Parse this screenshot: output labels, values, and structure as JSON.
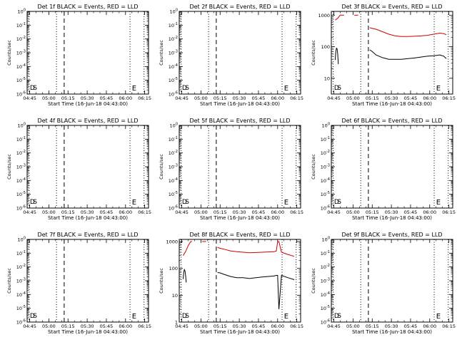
{
  "colors": {
    "events": "#000000",
    "lld": "#cc0000",
    "frame": "#000000",
    "background": "#ffffff"
  },
  "chart_data": [
    {
      "type": "line",
      "title": "Det 1f BLACK = Events, RED = LLD",
      "xlabel": "Start Time (16-Jun-18 04:43:00)",
      "ylabel": "Counts/sec",
      "yscale": "log",
      "ytick_labels": [
        "10^0",
        "10^-1",
        "10^-2",
        "10^-3",
        "10^-4",
        "10^-5",
        "10^-6"
      ],
      "xtick_labels": [
        "04:45",
        "05:00",
        "05:15",
        "05:30",
        "05:45",
        "06:00",
        "06:15"
      ],
      "xlim": [
        0,
        95
      ],
      "ylim": [
        -6,
        0
      ],
      "vlines": [
        {
          "x": 1.5,
          "style": "dotted"
        },
        {
          "x": 23,
          "style": "dotted"
        },
        {
          "x": 29,
          "style": "dashed"
        },
        {
          "x": 80.5,
          "style": "dotted"
        },
        {
          "x": 91.5,
          "style": "dotted"
        }
      ],
      "markers": [
        "D",
        "S",
        "E"
      ],
      "series": []
    },
    {
      "type": "line",
      "title": "Det 2f BLACK = Events, RED = LLD",
      "xlabel": "Start Time (16-Jun-18 04:43:00)",
      "ylabel": "Counts/sec",
      "yscale": "log",
      "ytick_labels": [
        "10^0",
        "10^-1",
        "10^-2",
        "10^-3",
        "10^-4",
        "10^-5",
        "10^-6"
      ],
      "xtick_labels": [
        "04:45",
        "05:00",
        "05:15",
        "05:30",
        "05:45",
        "06:00",
        "06:15"
      ],
      "xlim": [
        0,
        95
      ],
      "ylim": [
        -6,
        0
      ],
      "vlines": [
        {
          "x": 1.5,
          "style": "dotted"
        },
        {
          "x": 23,
          "style": "dotted"
        },
        {
          "x": 29,
          "style": "dashed"
        },
        {
          "x": 80.5,
          "style": "dotted"
        },
        {
          "x": 91.5,
          "style": "dotted"
        }
      ],
      "markers": [
        "D",
        "S",
        "E"
      ],
      "series": []
    },
    {
      "type": "line",
      "title": "Det 3f BLACK = Events, RED = LLD",
      "xlabel": "Start Time (16-Jun-18 04:43:00)",
      "ylabel": "Counts/sec",
      "yscale": "log",
      "ytick_labels": [
        "10",
        "100",
        "1000"
      ],
      "xtick_labels": [
        "04:45",
        "05:00",
        "05:15",
        "05:30",
        "05:45",
        "06:00",
        "06:15"
      ],
      "xlim": [
        0,
        95
      ],
      "ylim": [
        0.5,
        3.12
      ],
      "vlines": [
        {
          "x": 1.5,
          "style": "dotted"
        },
        {
          "x": 23,
          "style": "dotted"
        },
        {
          "x": 29,
          "style": "dashed"
        },
        {
          "x": 80.5,
          "style": "dotted"
        },
        {
          "x": 91.5,
          "style": "dotted"
        }
      ],
      "markers": [
        "D",
        "S",
        "E"
      ],
      "series": [
        {
          "name": "Events",
          "color": "#000000",
          "x": [
            3,
            3.5,
            4,
            4.5,
            5,
            5.5
          ],
          "y": [
            38,
            70,
            90,
            85,
            60,
            28
          ]
        },
        {
          "name": "Events",
          "color": "#000000",
          "x": [
            30,
            32,
            35,
            40,
            45,
            50,
            55,
            60,
            65,
            70,
            75,
            80,
            85,
            88,
            90
          ],
          "y": [
            80,
            70,
            55,
            45,
            40,
            40,
            40,
            42,
            44,
            47,
            50,
            52,
            55,
            50,
            42
          ]
        },
        {
          "name": "LLD",
          "color": "#cc0000",
          "x": [
            3,
            5,
            7,
            9,
            10
          ],
          "y": [
            700,
            800,
            1000,
            1000,
            1000
          ]
        },
        {
          "name": "LLD",
          "color": "#cc0000",
          "x": [
            18,
            19,
            20,
            21
          ],
          "y": [
            1000,
            1000,
            1000,
            1000
          ]
        },
        {
          "name": "LLD",
          "color": "#cc0000",
          "x": [
            30,
            32,
            35,
            40,
            45,
            50,
            55,
            60,
            65,
            70,
            75,
            80,
            85,
            88,
            90
          ],
          "y": [
            400,
            380,
            360,
            300,
            250,
            220,
            210,
            210,
            215,
            220,
            230,
            250,
            270,
            260,
            240
          ]
        }
      ]
    },
    {
      "type": "line",
      "title": "Det 4f BLACK = Events, RED = LLD",
      "xlabel": "Start Time (16-Jun-18 04:43:00)",
      "ylabel": "Counts/sec",
      "yscale": "log",
      "ytick_labels": [
        "10^0",
        "10^-1",
        "10^-2",
        "10^-3",
        "10^-4",
        "10^-5",
        "10^-6"
      ],
      "xtick_labels": [
        "04:45",
        "05:00",
        "05:15",
        "05:30",
        "05:45",
        "06:00",
        "06:15"
      ],
      "xlim": [
        0,
        95
      ],
      "ylim": [
        -6,
        0
      ],
      "vlines": [
        {
          "x": 1.5,
          "style": "dotted"
        },
        {
          "x": 23,
          "style": "dotted"
        },
        {
          "x": 29,
          "style": "dashed"
        },
        {
          "x": 80.5,
          "style": "dotted"
        },
        {
          "x": 91.5,
          "style": "dotted"
        }
      ],
      "markers": [
        "D",
        "S",
        "E"
      ],
      "series": []
    },
    {
      "type": "line",
      "title": "Det 5f BLACK = Events, RED = LLD",
      "xlabel": "Start Time (16-Jun-18 04:43:00)",
      "ylabel": "Counts/sec",
      "yscale": "log",
      "ytick_labels": [
        "10^0",
        "10^-1",
        "10^-2",
        "10^-3",
        "10^-4",
        "10^-5",
        "10^-6"
      ],
      "xtick_labels": [
        "04:45",
        "05:00",
        "05:15",
        "05:30",
        "05:45",
        "06:00",
        "06:15"
      ],
      "xlim": [
        0,
        95
      ],
      "ylim": [
        -6,
        0
      ],
      "vlines": [
        {
          "x": 1.5,
          "style": "dotted"
        },
        {
          "x": 23,
          "style": "dotted"
        },
        {
          "x": 29,
          "style": "dashed"
        },
        {
          "x": 80.5,
          "style": "dotted"
        },
        {
          "x": 91.5,
          "style": "dotted"
        }
      ],
      "markers": [
        "D",
        "S",
        "E"
      ],
      "series": []
    },
    {
      "type": "line",
      "title": "Det 6f BLACK = Events, RED = LLD",
      "xlabel": "Start Time (16-Jun-18 04:43:00)",
      "ylabel": "Counts/sec",
      "yscale": "log",
      "ytick_labels": [
        "10^0",
        "10^-1",
        "10^-2",
        "10^-3",
        "10^-4",
        "10^-5",
        "10^-6"
      ],
      "xtick_labels": [
        "04:45",
        "05:00",
        "05:15",
        "05:30",
        "05:45",
        "06:00",
        "06:15"
      ],
      "xlim": [
        0,
        95
      ],
      "ylim": [
        -6,
        0
      ],
      "vlines": [
        {
          "x": 1.5,
          "style": "dotted"
        },
        {
          "x": 23,
          "style": "dotted"
        },
        {
          "x": 29,
          "style": "dashed"
        },
        {
          "x": 80.5,
          "style": "dotted"
        },
        {
          "x": 91.5,
          "style": "dotted"
        }
      ],
      "markers": [
        "D",
        "S",
        "E"
      ],
      "series": []
    },
    {
      "type": "line",
      "title": "Det 7f BLACK = Events, RED = LLD",
      "xlabel": "Start Time (16-Jun-18 04:43:00)",
      "ylabel": "Counts/sec",
      "yscale": "log",
      "ytick_labels": [
        "10^0",
        "10^-1",
        "10^-2",
        "10^-3",
        "10^-4",
        "10^-5",
        "10^-6"
      ],
      "xtick_labels": [
        "04:45",
        "05:00",
        "05:15",
        "05:30",
        "05:45",
        "06:00",
        "06:15"
      ],
      "xlim": [
        0,
        95
      ],
      "ylim": [
        -6,
        0
      ],
      "vlines": [
        {
          "x": 1.5,
          "style": "dotted"
        },
        {
          "x": 23,
          "style": "dotted"
        },
        {
          "x": 29,
          "style": "dashed"
        },
        {
          "x": 80.5,
          "style": "dotted"
        },
        {
          "x": 91.5,
          "style": "dotted"
        }
      ],
      "markers": [
        "D",
        "S",
        "E"
      ],
      "series": []
    },
    {
      "type": "line",
      "title": "Det 8f BLACK = Events, RED = LLD",
      "xlabel": "Start Time (16-Jun-18 04:43:00)",
      "ylabel": "Counts/sec",
      "yscale": "log",
      "ytick_labels": [
        "1",
        "10",
        "100",
        "1000"
      ],
      "xtick_labels": [
        "04:45",
        "05:00",
        "05:15",
        "05:30",
        "05:45",
        "06:00",
        "06:15"
      ],
      "xlim": [
        0,
        95
      ],
      "ylim": [
        0,
        3.08
      ],
      "vlines": [
        {
          "x": 1.5,
          "style": "dotted"
        },
        {
          "x": 23,
          "style": "dotted"
        },
        {
          "x": 29,
          "style": "dashed"
        },
        {
          "x": 80.5,
          "style": "dotted"
        },
        {
          "x": 91.5,
          "style": "dotted"
        }
      ],
      "markers": [
        "D",
        "S",
        "E"
      ],
      "series": [
        {
          "name": "Events",
          "color": "#000000",
          "x": [
            3,
            3.5,
            4,
            4.5,
            5,
            5.5
          ],
          "y": [
            40,
            70,
            90,
            80,
            55,
            30
          ]
        },
        {
          "name": "Events",
          "color": "#000000",
          "x": [
            30,
            32,
            35,
            40,
            45,
            50,
            55,
            60,
            65,
            70,
            74,
            76,
            77,
            78,
            80,
            85,
            90
          ],
          "y": [
            70,
            68,
            60,
            50,
            45,
            45,
            42,
            45,
            48,
            50,
            52,
            55,
            55,
            3,
            55,
            45,
            38
          ]
        },
        {
          "name": "LLD",
          "color": "#cc0000",
          "x": [
            3,
            5,
            7,
            9,
            10
          ],
          "y": [
            300,
            420,
            700,
            1000,
            1000
          ]
        },
        {
          "name": "LLD",
          "color": "#cc0000",
          "x": [
            18,
            19,
            20,
            21
          ],
          "y": [
            1000,
            1000,
            1000,
            1000
          ]
        },
        {
          "name": "LLD",
          "color": "#cc0000",
          "x": [
            30,
            32,
            35,
            40,
            45,
            50,
            55,
            60,
            65,
            70,
            74,
            76,
            77,
            78,
            80,
            85,
            90
          ],
          "y": [
            600,
            560,
            520,
            450,
            420,
            400,
            380,
            390,
            400,
            410,
            420,
            440,
            1000,
            1000,
            400,
            330,
            280
          ]
        }
      ]
    },
    {
      "type": "line",
      "title": "Det 9f BLACK = Events, RED = LLD",
      "xlabel": "Start Time (16-Jun-18 04:43:00)",
      "ylabel": "Counts/sec",
      "yscale": "log",
      "ytick_labels": [
        "10^0",
        "10^-1",
        "10^-2",
        "10^-3",
        "10^-4",
        "10^-5",
        "10^-6"
      ],
      "xtick_labels": [
        "04:45",
        "05:00",
        "05:15",
        "05:30",
        "05:45",
        "06:00",
        "06:15"
      ],
      "xlim": [
        0,
        95
      ],
      "ylim": [
        -6,
        0
      ],
      "vlines": [
        {
          "x": 1.5,
          "style": "dotted"
        },
        {
          "x": 23,
          "style": "dotted"
        },
        {
          "x": 29,
          "style": "dashed"
        },
        {
          "x": 80.5,
          "style": "dotted"
        },
        {
          "x": 91.5,
          "style": "dotted"
        }
      ],
      "markers": [
        "D",
        "S",
        "E"
      ],
      "series": []
    }
  ]
}
